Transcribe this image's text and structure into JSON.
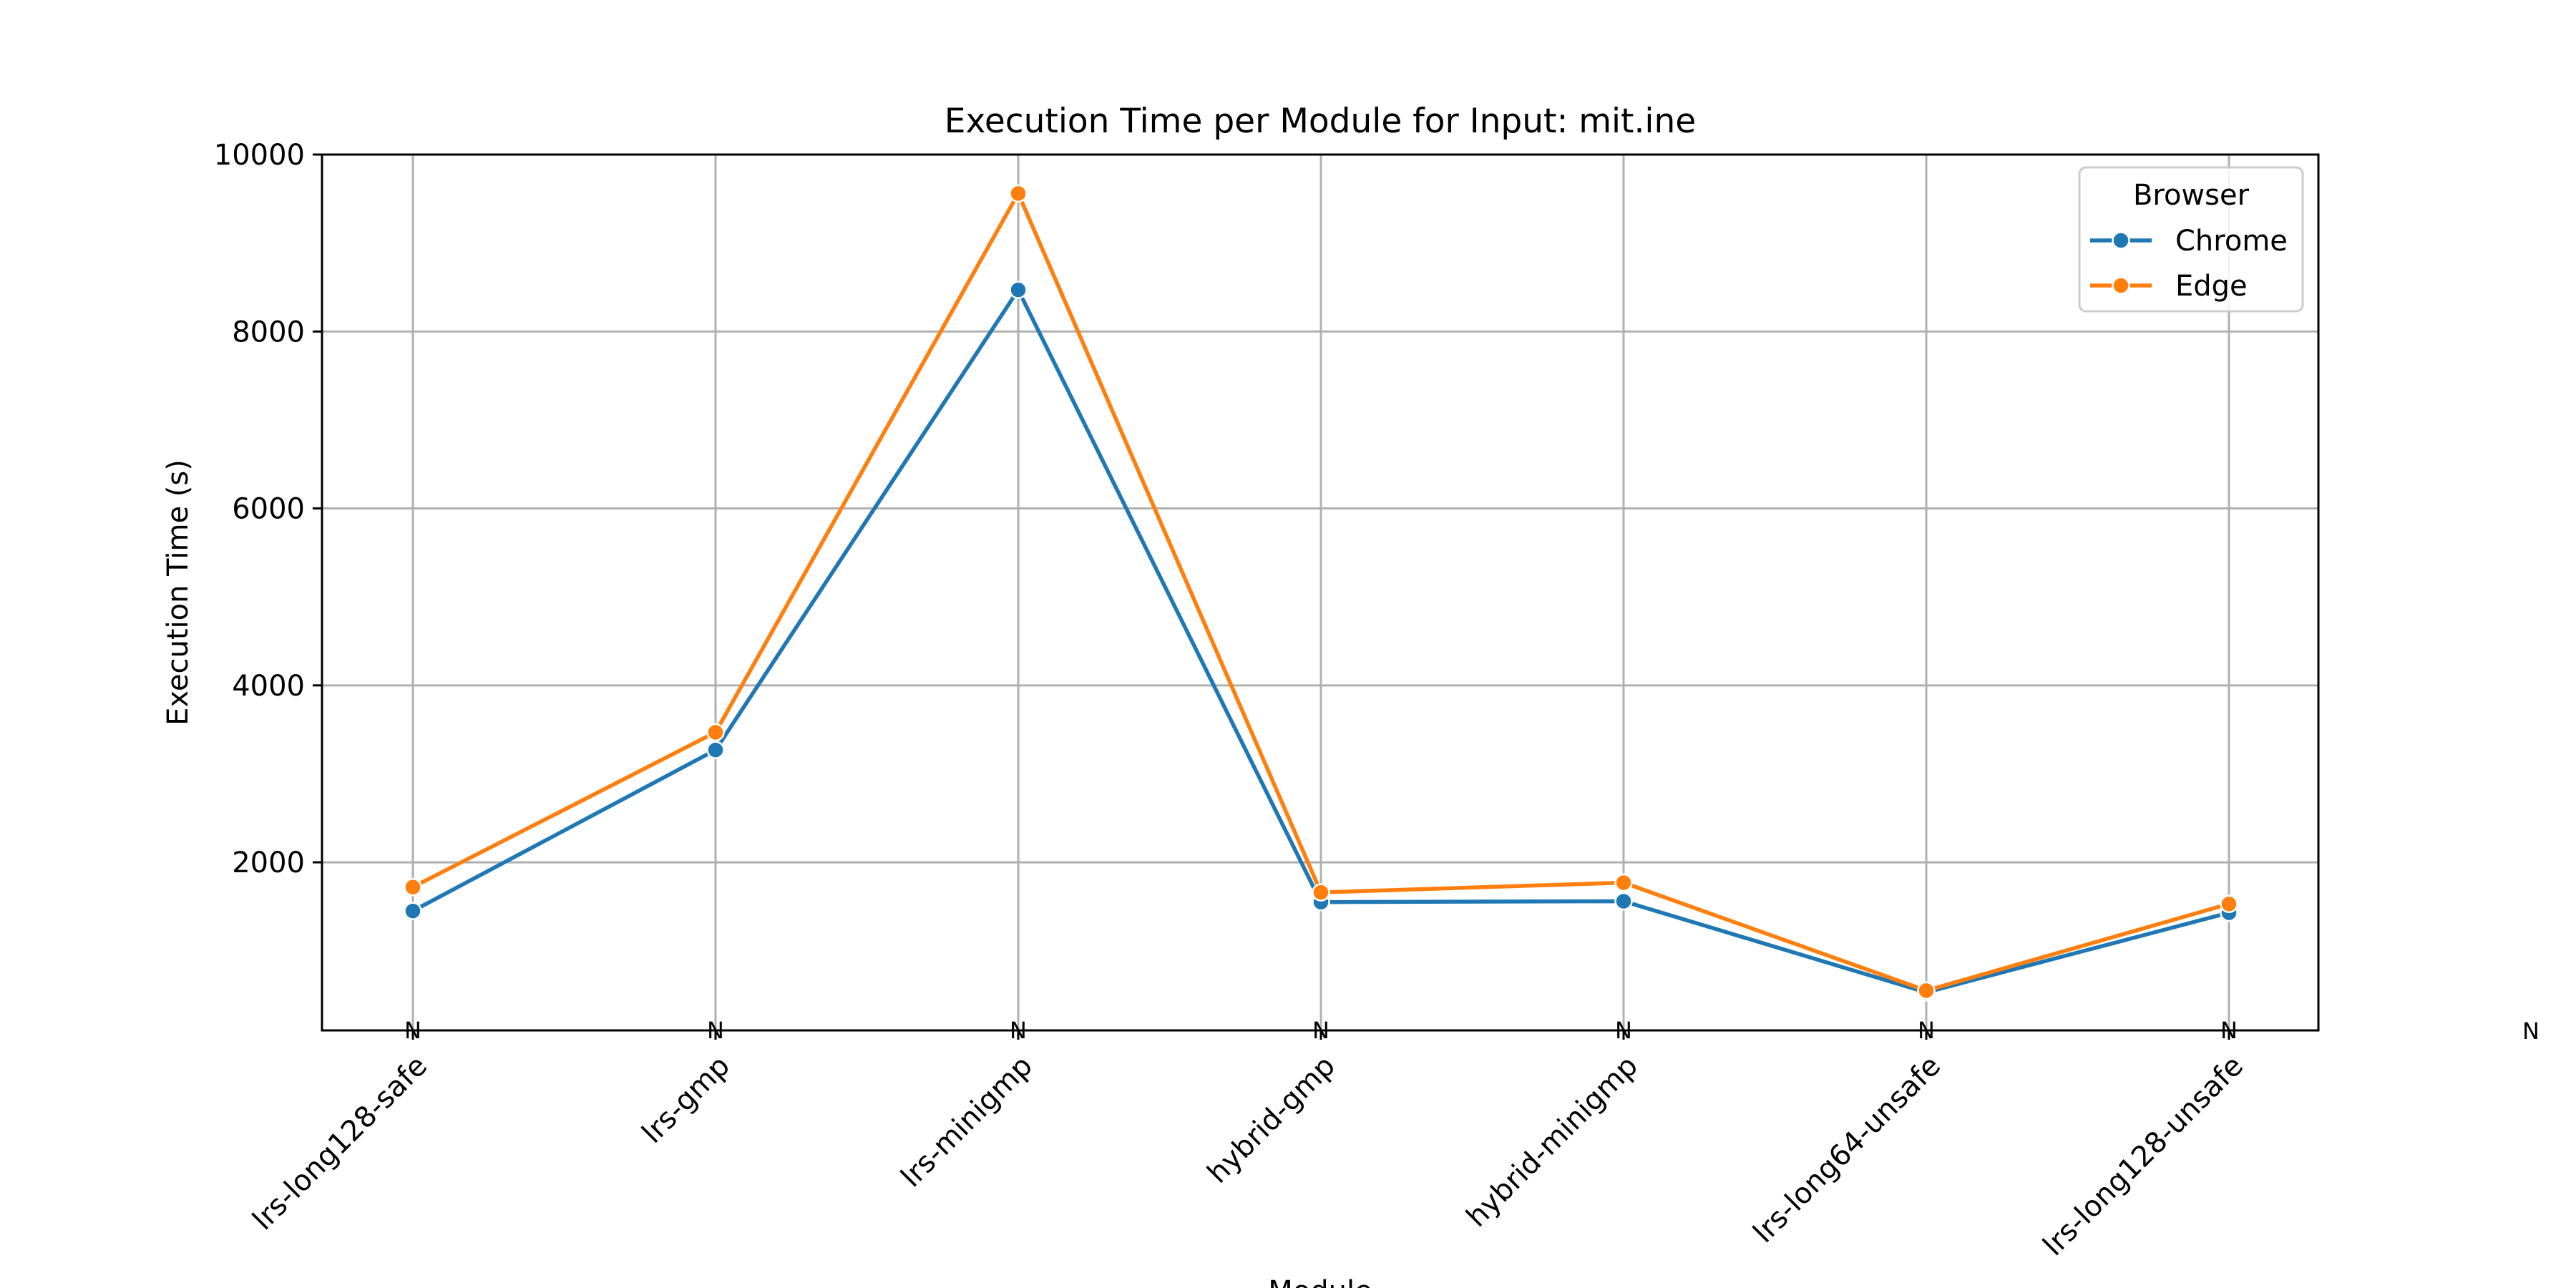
{
  "chart_data": {
    "type": "line",
    "title": "Execution Time per Module for Input: mit.ine",
    "xlabel": "Module",
    "ylabel": "Execution Time (s)",
    "categories": [
      "lrs-long128-safe",
      "lrs-gmp",
      "lrs-minigmp",
      "hybrid-gmp",
      "hybrid-minigmp",
      "lrs-long64-unsafe",
      "lrs-long128-unsafe"
    ],
    "ylim": [
      100,
      10000
    ],
    "yticks": [
      2000,
      4000,
      6000,
      8000,
      10000
    ],
    "grid": true,
    "legend": {
      "title": "Browser",
      "position": "top-right"
    },
    "series": [
      {
        "name": "Chrome",
        "color": "#1f77b4",
        "values": [
          1450,
          3270,
          8470,
          1550,
          1560,
          530,
          1430
        ]
      },
      {
        "name": "Edge",
        "color": "#ff7f0e",
        "values": [
          1720,
          3470,
          9560,
          1660,
          1770,
          550,
          1530
        ]
      }
    ],
    "annotations": {
      "marker_text": "N",
      "marker_color": "#0000ff",
      "stray_text": "N",
      "stray_color": "#cc00cc"
    }
  }
}
